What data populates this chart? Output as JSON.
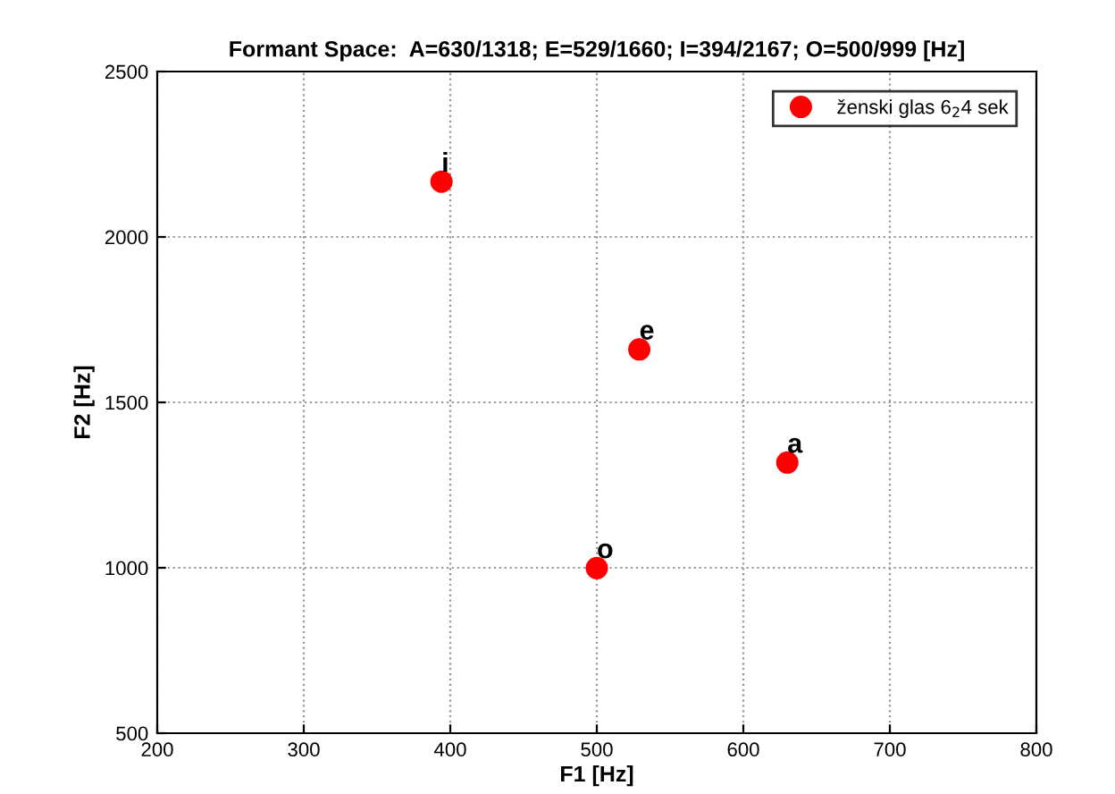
{
  "chart_data": {
    "type": "scatter",
    "title": "Formant Space:  A=630/1318; E=529/1660; I=394/2167; O=500/999 [Hz]",
    "xlabel": "F1 [Hz]",
    "ylabel": "F2 [Hz]",
    "series": [
      {
        "name": "ženski glas 6$_{2}$4 sek",
        "color": "#ff0000",
        "x": [
          630,
          529,
          394,
          500
        ],
        "values": [
          1318,
          1660,
          2167,
          999
        ]
      }
    ],
    "annotations": [
      {
        "text": "a",
        "x": 630,
        "y": 1318
      },
      {
        "text": "e",
        "x": 529,
        "y": 1660
      },
      {
        "text": "i",
        "x": 394,
        "y": 2167
      },
      {
        "text": "o",
        "x": 500,
        "y": 999
      }
    ],
    "xlim": [
      200,
      800
    ],
    "xticks": [
      200,
      300,
      400,
      500,
      600,
      700,
      800
    ],
    "ylim": [
      500,
      2500
    ],
    "yticks": [
      500,
      1000,
      1500,
      2000,
      2500
    ],
    "grid": true,
    "legend": "top right",
    "marker": "circle"
  }
}
